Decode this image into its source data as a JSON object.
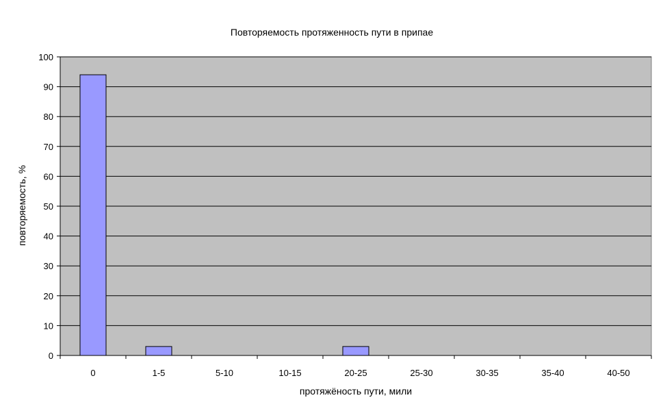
{
  "chart_data": {
    "type": "bar",
    "title": "Повторяемость протяженность пути в припае",
    "xlabel": "протяжёность пути, мили",
    "ylabel": "повторяемость, %",
    "categories": [
      "0",
      "1-5",
      "5-10",
      "10-15",
      "20-25",
      "25-30",
      "30-35",
      "35-40",
      "40-50"
    ],
    "values": [
      94,
      3,
      0,
      0,
      3,
      0,
      0,
      0,
      0
    ],
    "ylim": [
      0,
      100
    ],
    "yticks": [
      0,
      10,
      20,
      30,
      40,
      50,
      60,
      70,
      80,
      90,
      100
    ],
    "grid": true,
    "legend": "none"
  },
  "colors": {
    "plot_background": "#c0c0c0",
    "bar_fill": "#9999ff",
    "bar_stroke": "#000000",
    "gridline": "#000000",
    "axis": "#000000"
  }
}
